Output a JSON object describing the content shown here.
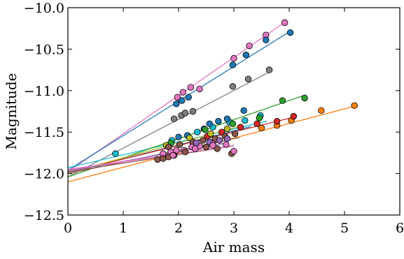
{
  "chart_data": {
    "type": "scatter",
    "title": "",
    "xlabel": "Air mass",
    "ylabel": "Magnitude",
    "xlim": [
      0,
      6
    ],
    "ylim": [
      -12.5,
      -10.0
    ],
    "y_inverted": true,
    "grid": false,
    "legend": "none",
    "xticks": [
      0,
      1,
      2,
      3,
      4,
      5,
      6
    ],
    "xtick_labels": [
      "0",
      "1",
      "2",
      "3",
      "4",
      "5",
      "6"
    ],
    "yticks": [
      -10.0,
      -10.5,
      -11.0,
      -11.5,
      -12.0,
      -12.5
    ],
    "ytick_labels": [
      "−10.0",
      "−10.5",
      "−11.0",
      "−11.5",
      "−12.0",
      "−12.5"
    ],
    "series": [
      {
        "color": "#e377c2",
        "fit": [
          -11.98,
          0.46
        ],
        "fit_x": [
          0,
          3.9
        ],
        "points": [
          [
            1.98,
            -11.08
          ],
          [
            2.08,
            -11.02
          ],
          [
            2.22,
            -10.96
          ],
          [
            2.38,
            -10.98
          ],
          [
            3.0,
            -10.61
          ],
          [
            3.28,
            -10.46
          ],
          [
            3.58,
            -10.33
          ],
          [
            3.92,
            -10.18
          ]
        ]
      },
      {
        "color": "#1f77b4",
        "fit": [
          -11.96,
          0.417
        ],
        "fit_x": [
          0,
          4.05
        ],
        "points": [
          [
            2.18,
            -11.08
          ],
          [
            2.06,
            -11.12
          ],
          [
            1.96,
            -11.16
          ],
          [
            2.98,
            -10.69
          ],
          [
            3.22,
            -10.57
          ],
          [
            3.58,
            -10.39
          ],
          [
            4.02,
            -10.3
          ]
        ]
      },
      {
        "color": "#7f7f7f",
        "fit": [
          -12.04,
          0.347
        ],
        "fit_x": [
          0,
          3.65
        ],
        "points": [
          [
            1.92,
            -11.34
          ],
          [
            2.05,
            -11.3
          ],
          [
            2.12,
            -11.27
          ],
          [
            2.26,
            -11.25
          ],
          [
            2.98,
            -10.95
          ],
          [
            3.26,
            -10.86
          ],
          [
            3.64,
            -10.75
          ]
        ]
      },
      {
        "color": "#17becf",
        "fit": [
          -11.93,
          0.156
        ],
        "fit_x": [
          0,
          3.6
        ],
        "points": [
          [
            0.86,
            -11.76
          ],
          [
            1.88,
            -11.6
          ],
          [
            2.34,
            -11.5
          ],
          [
            2.62,
            -11.44
          ],
          [
            2.92,
            -11.38
          ],
          [
            3.2,
            -11.36
          ],
          [
            3.48,
            -11.3
          ]
        ]
      },
      {
        "color": "#1f77b4",
        "fit": [
          -11.99,
          0.168
        ],
        "fit_x": [
          0,
          3.3
        ],
        "points": [
          [
            2.0,
            -11.56
          ],
          [
            2.16,
            -11.54
          ],
          [
            2.46,
            -11.46
          ],
          [
            2.56,
            -11.4
          ],
          [
            2.72,
            -11.37
          ],
          [
            2.88,
            -11.34
          ],
          [
            3.18,
            -11.24
          ]
        ]
      },
      {
        "color": "#2ca02c",
        "fit": [
          -12.04,
          0.23
        ],
        "fit_x": [
          0,
          4.3
        ],
        "points": [
          [
            1.86,
            -11.63
          ],
          [
            2.48,
            -11.47
          ],
          [
            2.98,
            -11.4
          ],
          [
            3.46,
            -11.33
          ],
          [
            3.88,
            -11.12
          ],
          [
            4.28,
            -11.09
          ]
        ]
      },
      {
        "color": "#ff7f0e",
        "fit": [
          -12.1,
          0.176
        ],
        "fit_x": [
          0,
          5.2
        ],
        "points": [
          [
            3.78,
            -11.42
          ],
          [
            4.04,
            -11.36
          ],
          [
            4.58,
            -11.24
          ],
          [
            5.18,
            -11.18
          ],
          [
            3.5,
            -11.45
          ]
        ]
      },
      {
        "color": "#d62728",
        "fit": [
          -11.99,
          0.164
        ],
        "fit_x": [
          0,
          4.1
        ],
        "points": [
          [
            2.52,
            -11.55
          ],
          [
            2.78,
            -11.5
          ],
          [
            3.12,
            -11.44
          ],
          [
            3.42,
            -11.4
          ],
          [
            3.78,
            -11.37
          ],
          [
            4.08,
            -11.31
          ]
        ]
      },
      {
        "color": "#bcbd22",
        "fit": [
          -11.99,
          0.18
        ],
        "fit_x": [
          0,
          3.1
        ],
        "points": [
          [
            1.78,
            -11.66
          ],
          [
            2.2,
            -11.57
          ],
          [
            2.58,
            -11.52
          ],
          [
            2.88,
            -11.46
          ]
        ]
      },
      {
        "color": "#8c564b",
        "fit": [
          -12.0,
          0.14
        ],
        "fit_x": [
          0,
          3.1
        ],
        "points": [
          [
            1.82,
            -11.68
          ],
          [
            2.02,
            -11.65
          ],
          [
            2.26,
            -11.62
          ],
          [
            2.44,
            -11.6
          ],
          [
            2.66,
            -11.58
          ],
          [
            2.84,
            -11.55
          ],
          [
            3.02,
            -11.52
          ]
        ]
      },
      {
        "color": "#e377c2",
        "fit": [
          -11.96,
          0.1
        ],
        "fit_x": [
          0,
          3.0
        ],
        "points": [
          [
            1.72,
            -11.76
          ],
          [
            1.86,
            -11.74
          ],
          [
            1.96,
            -11.72
          ],
          [
            2.1,
            -11.72
          ],
          [
            2.24,
            -11.68
          ],
          [
            2.38,
            -11.67
          ],
          [
            2.62,
            -11.64
          ],
          [
            2.86,
            -11.65
          ]
        ]
      },
      {
        "color": "#8c564b",
        "fit": [
          -11.98,
          0.105
        ],
        "fit_x": [
          0,
          3.0
        ],
        "points": [
          [
            1.62,
            -11.83
          ],
          [
            1.72,
            -11.82
          ],
          [
            1.82,
            -11.8
          ],
          [
            1.92,
            -11.78
          ],
          [
            2.12,
            -11.74
          ],
          [
            2.5,
            -11.68
          ],
          [
            2.7,
            -11.7
          ],
          [
            2.96,
            -11.76
          ]
        ]
      },
      {
        "color": "#9467bd",
        "fit": [
          -11.97,
          0.118
        ],
        "fit_x": [
          0,
          2.9
        ],
        "points": [
          [
            2.32,
            -11.63
          ],
          [
            2.56,
            -11.62
          ],
          [
            2.74,
            -11.6
          ],
          [
            2.88,
            -11.58
          ]
        ]
      },
      {
        "color": "#e377c2",
        "fit": [
          -11.95,
          0.095
        ],
        "fit_x": [
          0,
          3.0
        ],
        "points": [
          [
            2.3,
            -11.7
          ],
          [
            2.62,
            -11.66
          ],
          [
            3.0,
            -11.73
          ],
          [
            1.9,
            -11.78
          ]
        ]
      }
    ]
  }
}
